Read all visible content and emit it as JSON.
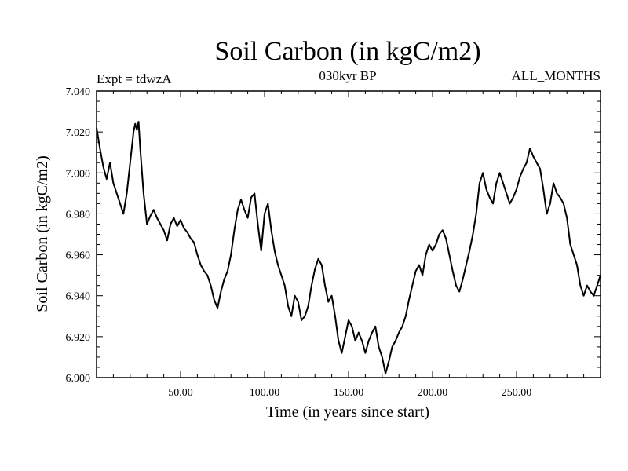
{
  "chart_data": {
    "type": "line",
    "title": "Soil Carbon (in kgC/m2)",
    "left_annotation": "Expt = tdwzA",
    "center_annotation": "030kyr BP",
    "right_annotation": "ALL_MONTHS",
    "xlabel": "Time (in years since start)",
    "ylabel": "Soil Carbon (in kgC/m2)",
    "xlim": [
      0,
      300
    ],
    "ylim": [
      6.9,
      7.04
    ],
    "xticks": [
      50,
      100,
      150,
      200,
      250
    ],
    "xtick_labels": [
      "50.00",
      "100.00",
      "150.00",
      "200.00",
      "250.00"
    ],
    "yticks": [
      6.9,
      6.92,
      6.94,
      6.96,
      6.98,
      7.0,
      7.02,
      7.04
    ],
    "ytick_labels": [
      "6.900",
      "6.920",
      "6.940",
      "6.960",
      "6.980",
      "7.000",
      "7.020",
      "7.040"
    ],
    "line_color": "#000000",
    "series": [
      {
        "name": "Soil Carbon",
        "x": [
          0,
          2,
          4,
          6,
          8,
          10,
          12,
          14,
          16,
          18,
          20,
          22,
          23,
          24,
          25,
          26,
          28,
          30,
          32,
          34,
          36,
          38,
          40,
          42,
          44,
          46,
          48,
          50,
          52,
          54,
          56,
          58,
          60,
          62,
          64,
          66,
          68,
          70,
          72,
          74,
          76,
          78,
          80,
          82,
          84,
          86,
          88,
          90,
          92,
          94,
          96,
          98,
          100,
          102,
          104,
          106,
          108,
          110,
          112,
          114,
          116,
          118,
          120,
          122,
          124,
          126,
          128,
          130,
          132,
          134,
          136,
          138,
          140,
          142,
          144,
          146,
          148,
          150,
          152,
          154,
          156,
          158,
          160,
          162,
          164,
          166,
          168,
          170,
          172,
          174,
          176,
          178,
          180,
          182,
          184,
          186,
          188,
          190,
          192,
          194,
          196,
          198,
          200,
          202,
          204,
          206,
          208,
          210,
          212,
          214,
          216,
          218,
          220,
          222,
          224,
          226,
          228,
          230,
          232,
          234,
          236,
          238,
          240,
          242,
          244,
          246,
          248,
          250,
          252,
          254,
          256,
          258,
          260,
          262,
          264,
          266,
          268,
          270,
          272,
          274,
          276,
          278,
          280,
          282,
          284,
          286,
          288,
          290,
          292,
          294,
          296,
          298,
          300
        ],
        "values": [
          7.022,
          7.012,
          7.003,
          6.997,
          7.005,
          6.995,
          6.99,
          6.985,
          6.98,
          6.99,
          7.005,
          7.02,
          7.024,
          7.021,
          7.025,
          7.012,
          6.99,
          6.975,
          6.979,
          6.982,
          6.978,
          6.975,
          6.972,
          6.967,
          6.975,
          6.978,
          6.974,
          6.977,
          6.973,
          6.971,
          6.968,
          6.966,
          6.96,
          6.955,
          6.952,
          6.95,
          6.945,
          6.938,
          6.934,
          6.942,
          6.948,
          6.952,
          6.96,
          6.972,
          6.982,
          6.987,
          6.982,
          6.978,
          6.988,
          6.99,
          6.975,
          6.962,
          6.98,
          6.985,
          6.972,
          6.962,
          6.955,
          6.95,
          6.945,
          6.935,
          6.93,
          6.94,
          6.937,
          6.928,
          6.93,
          6.935,
          6.945,
          6.953,
          6.958,
          6.955,
          6.945,
          6.937,
          6.94,
          6.93,
          6.918,
          6.912,
          6.92,
          6.928,
          6.925,
          6.918,
          6.922,
          6.918,
          6.912,
          6.918,
          6.922,
          6.925,
          6.915,
          6.91,
          6.902,
          6.908,
          6.915,
          6.918,
          6.922,
          6.925,
          6.93,
          6.938,
          6.945,
          6.952,
          6.955,
          6.95,
          6.96,
          6.965,
          6.962,
          6.965,
          6.97,
          6.972,
          6.968,
          6.96,
          6.952,
          6.945,
          6.942,
          6.948,
          6.955,
          6.962,
          6.97,
          6.98,
          6.995,
          7.0,
          6.992,
          6.988,
          6.985,
          6.995,
          7.0,
          6.995,
          6.99,
          6.985,
          6.988,
          6.992,
          6.998,
          7.002,
          7.005,
          7.012,
          7.008,
          7.005,
          7.002,
          6.992,
          6.98,
          6.985,
          6.995,
          6.99,
          6.988,
          6.985,
          6.978,
          6.965,
          6.96,
          6.955,
          6.945,
          6.94,
          6.945,
          6.942,
          6.94,
          6.945,
          6.95
        ]
      }
    ]
  }
}
